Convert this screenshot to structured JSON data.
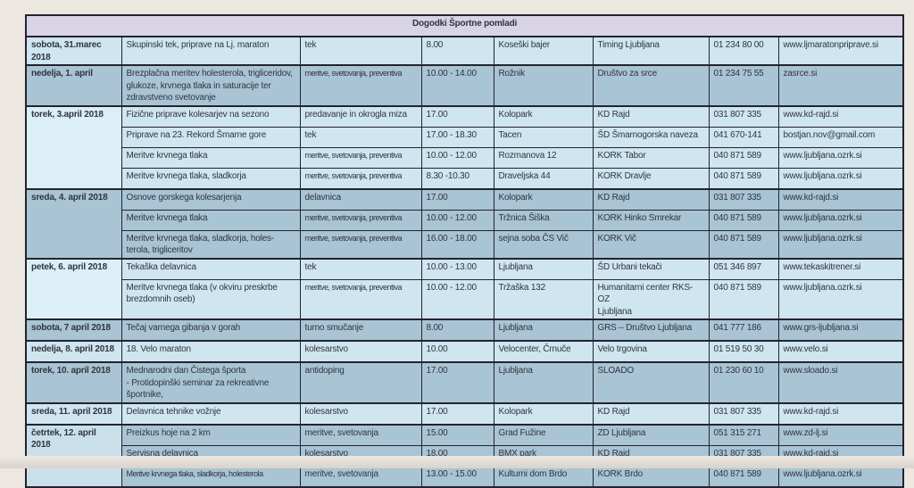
{
  "title": "Dogodki Športne pomladi",
  "colors": {
    "header_bg": "#d8d3e5",
    "row_light": "#cfe5ef",
    "row_dark": "#a9c4d4",
    "date_extra_light": "#dceff6",
    "date_mid_light": "#c9e0ea",
    "border": "#23232e",
    "text": "#2e3540",
    "page_bg": "#ece7e1"
  },
  "groups": [
    {
      "date": "sobota, 31.marec 2018",
      "date_bg": "#cfe5ef",
      "row_bg": "#cfe5ef",
      "rows": [
        {
          "event": "Skupinski tek, priprave na Lj. maraton",
          "type": "tek",
          "time": "8.00",
          "location": "Koseški bajer",
          "organizer": "Timing Ljubljana",
          "phone": "01 234 80 00",
          "web": "www.ljmaratonpriprave.si"
        }
      ]
    },
    {
      "date": "nedelja, 1. april",
      "date_bg": "#a9c4d4",
      "row_bg": "#a9c4d4",
      "rows": [
        {
          "event": "Brezplačna meritev holesterola, trigliceridov, glukoze, krvnega tlaka in saturacije ter zdravstveno svetovanje",
          "type": "meritve, svetovanja, preventiva",
          "type_small": true,
          "time": "10.00 - 14.00",
          "location": "Rožnik",
          "organizer": "Društvo za srce",
          "phone": "01 234 75 55",
          "web": "zasrce.si"
        }
      ]
    },
    {
      "date": "torek, 3.april 2018",
      "date_bg": "#dceff6",
      "row_bg": "#cfe5ef",
      "rows": [
        {
          "event": "Fizične priprave kolesarjev na sezono",
          "type": "predavanje in okrogla miza",
          "time": "17.00",
          "location": "Kolopark",
          "organizer": "KD Rajd",
          "phone": "031 807 335",
          "web": "www.kd-rajd.si"
        },
        {
          "event": "Priprave na 23. Rekord Šmarne gore",
          "type": "tek",
          "time": "17.00 - 18.30",
          "location": "Tacen",
          "organizer": "ŠD Šmarnogorska naveza",
          "org_small": true,
          "phone": "041 670-141",
          "web": "bostjan.nov@gmail.com"
        },
        {
          "event": "Meritve krvnega tlaka",
          "type": "meritve, svetovanja, preventiva",
          "type_small": true,
          "time": "10.00 - 12.00",
          "location": "Rozmanova 12",
          "organizer": "KORK Tabor",
          "phone": "040 871 589",
          "web": "www.ljubljana.ozrk.si"
        },
        {
          "event": "Meritve krvnega tlaka, sladkorja",
          "type": "meritve, svetovanja, preventiva",
          "type_small": true,
          "time": "8.30 -10.30",
          "location": "Draveljska 44",
          "organizer": "KORK Dravlje",
          "phone": "040 871 589",
          "web": "www.ljubljana.ozrk.si"
        }
      ]
    },
    {
      "date": "sreda, 4. april 2018",
      "date_bg": "#a9c4d4",
      "row_bg": "#a9c4d4",
      "rows": [
        {
          "event": "Osnove gorskega kolesarjenja",
          "type": "delavnica",
          "time": "17.00",
          "location": "Kolopark",
          "organizer": "KD Rajd",
          "phone": "031 807 335",
          "web": "www.kd-rajd.si"
        },
        {
          "event": "Meritve krvnega tlaka",
          "type": "meritve, svetovanja, preventiva",
          "type_small": true,
          "time": "10.00 - 12.00",
          "location": "Tržnica Šiška",
          "organizer": "KORK Hinko Smrekar",
          "phone": "040 871 589",
          "web": "www.ljubljana.ozrk.si"
        },
        {
          "event": "Meritve krvnega tlaka, sladkorja, holes-\nterola, trigliceritov",
          "type": "meritve, svetovanja, preventiva",
          "type_small": true,
          "time": "16.00 - 18.00",
          "location": "sejna soba ČS Vič",
          "organizer": "KORK Vič",
          "phone": "040 871 589",
          "web": "www.ljubljana.ozrk.si"
        }
      ]
    },
    {
      "date": "petek, 6. april 2018",
      "date_bg": "#dceff6",
      "row_bg": "#cfe5ef",
      "rows": [
        {
          "event": "Tekaška delavnica",
          "type": "tek",
          "time": "10.00 - 13.00",
          "location": "Ljubljana",
          "organizer": "ŠD Urbani tekači",
          "phone": "051 346 897",
          "web": "www.tekaskitrener.si"
        },
        {
          "event": "Meritve krvnega tlaka (v okviru preskrbe\nbrezdomnih oseb)",
          "type": "meritve, svetovanja, preventiva",
          "type_small": true,
          "time": "10.00 - 12.00",
          "location": "Tržaška 132",
          "organizer": "Humanitarni center RKS-OZ\nLjubljana",
          "org_small": true,
          "phone": "040 871 589",
          "web": "www.ljubljana.ozrk.si"
        }
      ]
    },
    {
      "date": "sobota, 7 april 2018",
      "date_bg": "#a9c4d4",
      "row_bg": "#a9c4d4",
      "rows": [
        {
          "event": "Tečaj varnega gibanja v gorah",
          "type": "turno smučanje",
          "time": "8.00",
          "location": "Ljubljana",
          "organizer": "GRS – Društvo Ljubljana",
          "phone": "041 777 186",
          "web": "www.grs-ljubljana.si"
        }
      ]
    },
    {
      "date": "nedelja, 8. april 2018",
      "date_bg": "#cfe5ef",
      "row_bg": "#cfe5ef",
      "rows": [
        {
          "event": "18. Velo maraton",
          "type": "kolesarstvo",
          "time": "10.00",
          "location": "Velocenter, Črnuče",
          "organizer": "Velo trgovina",
          "phone": "01 519 50 30",
          "web": "www.velo.si"
        }
      ]
    },
    {
      "date": "torek, 10. april 2018",
      "date_bg": "#a9c4d4",
      "row_bg": "#a9c4d4",
      "rows": [
        {
          "event": "Mednarodni dan Čistega športa\n- Protidopinški seminar za rekreativne\nšportnike,",
          "type": "antidoping",
          "time": "17.00",
          "location": "Ljubljana",
          "organizer": "SLOADO",
          "phone": "01 230 60 10",
          "web": "www.sloado.si"
        }
      ]
    },
    {
      "date": "sreda, 11. april 2018",
      "date_bg": "#cfe5ef",
      "row_bg": "#cfe5ef",
      "rows": [
        {
          "event": "Delavnica tehnike vožnje",
          "type": "kolesarstvo",
          "time": "17.00",
          "location": "Kolopark",
          "organizer": "KD Rajd",
          "phone": "031 807 335",
          "web": "www.kd-rajd.si"
        }
      ]
    },
    {
      "date": "četrtek, 12. april 2018",
      "date_bg": "#c9e0ea",
      "row_bg": "#a9c4d4",
      "rows": [
        {
          "event": "Preizkus hoje na 2 km",
          "type": "meritve, svetovanja",
          "time": "15.00",
          "location": "Grad Fužine",
          "organizer": "ZD Ljubljana",
          "phone": "051 315 271",
          "web": "www.zd-lj.si"
        },
        {
          "event": "Servisna delavnica",
          "type": "kolesarstvo",
          "time": "18.00",
          "location": "BMX park",
          "organizer": "KD Rajd",
          "phone": "031 807 335",
          "web": "www.kd-rajd.si"
        },
        {
          "event": "Meritve krvnega tlaka, sladkorja, holesterola",
          "event_small": true,
          "type": "meritve, svetovanja",
          "time": "13.00 - 15.00",
          "location": "Kulturni dom Brdo",
          "organizer": "KORK Brdo",
          "phone": "040 871 589",
          "web": "www.ljubljana.ozrk.si"
        }
      ]
    }
  ]
}
